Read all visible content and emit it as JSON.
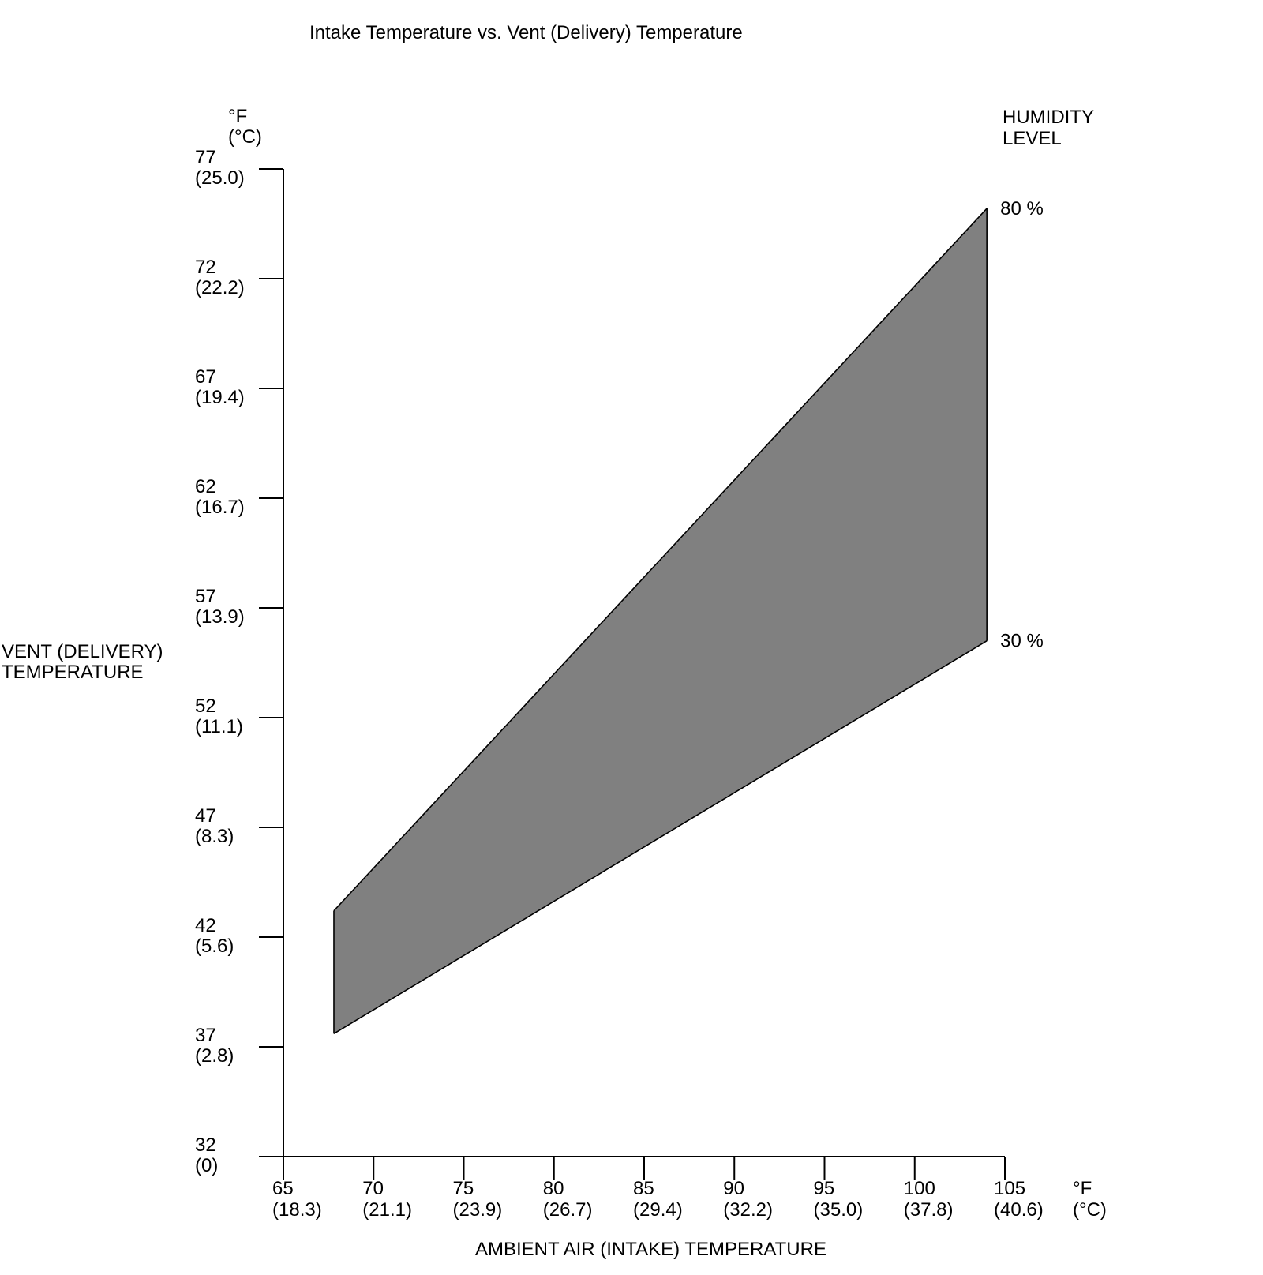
{
  "chart_data": {
    "type": "area",
    "title": "Intake Temperature vs. Vent (Delivery) Temperature",
    "xlabel": "AMBIENT AIR (INTAKE) TEMPERATURE",
    "ylabel": [
      "VENT (DELIVERY)",
      "TEMPERATURE"
    ],
    "x_unit": [
      "°F",
      "(°C)"
    ],
    "y_unit": [
      "°F",
      "(°C)"
    ],
    "xlim": [
      65,
      105
    ],
    "ylim": [
      32,
      77
    ],
    "x_ticks": [
      {
        "f": "65",
        "c": "(18.3)",
        "value": 65
      },
      {
        "f": "70",
        "c": "(21.1)",
        "value": 70
      },
      {
        "f": "75",
        "c": "(23.9)",
        "value": 75
      },
      {
        "f": "80",
        "c": "(26.7)",
        "value": 80
      },
      {
        "f": "85",
        "c": "(29.4)",
        "value": 85
      },
      {
        "f": "90",
        "c": "(32.2)",
        "value": 90
      },
      {
        "f": "95",
        "c": "(35.0)",
        "value": 95
      },
      {
        "f": "100",
        "c": "(37.8)",
        "value": 100
      },
      {
        "f": "105",
        "c": "(40.6)",
        "value": 105
      }
    ],
    "y_ticks": [
      {
        "f": "32",
        "c": "(0)",
        "value": 32
      },
      {
        "f": "37",
        "c": "(2.8)",
        "value": 37
      },
      {
        "f": "42",
        "c": "(5.6)",
        "value": 42
      },
      {
        "f": "47",
        "c": "(8.3)",
        "value": 47
      },
      {
        "f": "52",
        "c": "(11.1)",
        "value": 52
      },
      {
        "f": "57",
        "c": "(13.9)",
        "value": 57
      },
      {
        "f": "62",
        "c": "(16.7)",
        "value": 62
      },
      {
        "f": "67",
        "c": "(19.4)",
        "value": 67
      },
      {
        "f": "72",
        "c": "(22.2)",
        "value": 72
      },
      {
        "f": "77",
        "c": "(25.0)",
        "value": 77
      }
    ],
    "legend_title": [
      "HUMIDITY",
      "LEVEL"
    ],
    "series": [
      {
        "name": "80 %",
        "x": [
          67.8,
          104
        ],
        "y": [
          43.2,
          75.2
        ]
      },
      {
        "name": "30 %",
        "x": [
          67.8,
          104
        ],
        "y": [
          37.6,
          55.5
        ]
      }
    ],
    "grid": false,
    "fill_color": "#808080",
    "line_color": "#000000"
  }
}
